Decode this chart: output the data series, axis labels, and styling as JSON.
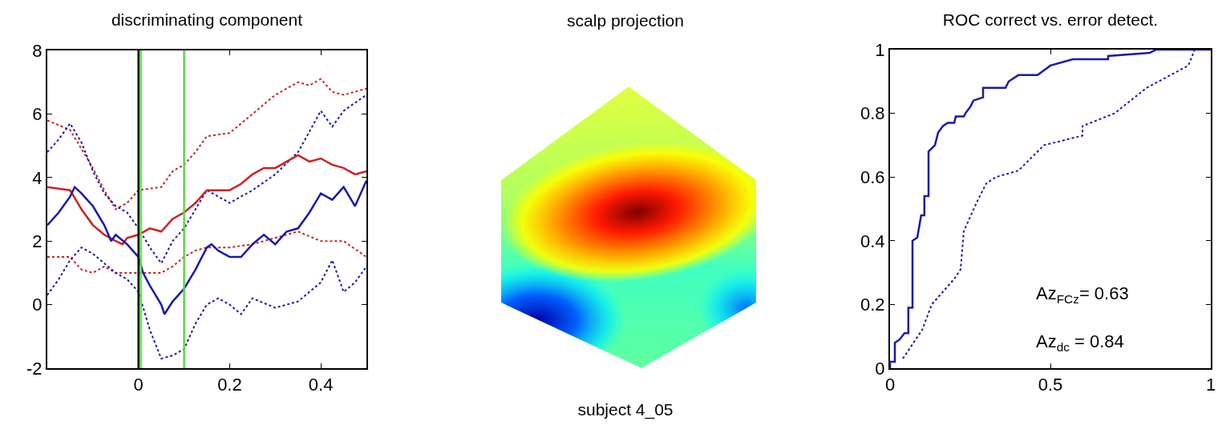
{
  "chart_data": [
    {
      "type": "line",
      "title": "discriminating component",
      "xlim": [
        -0.2,
        0.5
      ],
      "xticks": [
        0,
        0.2,
        0.4
      ],
      "ylim": [
        -2,
        8
      ],
      "yticks": [
        -2,
        0,
        2,
        4,
        6,
        8
      ],
      "ref_lines": [
        {
          "axis": "x",
          "value": 0,
          "color": "#000000"
        },
        {
          "axis": "x",
          "value": 0.005,
          "color": "#55dd44"
        },
        {
          "axis": "x",
          "value": 0.1,
          "color": "#55dd44"
        }
      ],
      "series": [
        {
          "color": "#cc2222",
          "line_style": "dotted",
          "x": [
            -0.2,
            -0.15,
            -0.125,
            -0.1,
            -0.075,
            -0.05,
            -0.025,
            0,
            0.05,
            0.075,
            0.1,
            0.125,
            0.15,
            0.2,
            0.25,
            0.3,
            0.35,
            0.375,
            0.4,
            0.425,
            0.45,
            0.5
          ],
          "values": [
            5.8,
            5.5,
            4.9,
            4.3,
            3.6,
            3.0,
            3.2,
            3.6,
            3.7,
            4.2,
            4.4,
            4.8,
            5.3,
            5.4,
            6.0,
            6.6,
            7.0,
            6.9,
            7.1,
            6.7,
            6.6,
            6.8
          ]
        },
        {
          "color": "#cc2222",
          "line_style": "dotted",
          "x": [
            -0.2,
            -0.15,
            -0.125,
            -0.1,
            -0.075,
            -0.05,
            -0.025,
            0,
            0.05,
            0.075,
            0.1,
            0.125,
            0.15,
            0.2,
            0.25,
            0.3,
            0.35,
            0.4,
            0.45,
            0.5
          ],
          "values": [
            1.5,
            1.5,
            1.1,
            1.0,
            1.2,
            1.0,
            1.0,
            1.0,
            1.0,
            1.2,
            1.5,
            1.7,
            1.8,
            1.8,
            1.9,
            2.1,
            2.3,
            2.0,
            2.0,
            1.5
          ]
        },
        {
          "color": "#1a1aaa",
          "line_style": "dotted",
          "x": [
            -0.2,
            -0.175,
            -0.15,
            -0.125,
            -0.1,
            -0.075,
            -0.05,
            -0.025,
            0,
            0.025,
            0.05,
            0.075,
            0.1,
            0.125,
            0.15,
            0.2,
            0.25,
            0.3,
            0.35,
            0.4,
            0.425,
            0.45,
            0.5
          ],
          "values": [
            4.8,
            5.2,
            5.7,
            5.1,
            4.2,
            3.5,
            3.1,
            2.9,
            2.4,
            1.8,
            1.3,
            2.0,
            2.4,
            3.0,
            3.6,
            3.2,
            3.6,
            4.1,
            4.8,
            6.1,
            5.6,
            6.1,
            6.6
          ]
        },
        {
          "color": "#1a1aaa",
          "line_style": "dotted",
          "x": [
            -0.2,
            -0.175,
            -0.15,
            -0.125,
            -0.1,
            -0.075,
            -0.05,
            -0.025,
            0,
            0.025,
            0.05,
            0.075,
            0.1,
            0.125,
            0.15,
            0.175,
            0.2,
            0.225,
            0.25,
            0.3,
            0.35,
            0.375,
            0.4,
            0.425,
            0.45,
            0.475,
            0.5
          ],
          "values": [
            0.3,
            0.8,
            1.4,
            1.8,
            1.6,
            1.3,
            1.0,
            0.8,
            0.4,
            -0.8,
            -1.7,
            -1.6,
            -1.4,
            -0.6,
            0.0,
            0.2,
            0.0,
            -0.3,
            0.2,
            -0.1,
            0.1,
            0.4,
            0.7,
            1.4,
            0.4,
            0.7,
            1.2
          ]
        },
        {
          "color": "#cc2222",
          "line_style": "solid",
          "x": [
            -0.2,
            -0.15,
            -0.125,
            -0.1,
            -0.075,
            -0.05,
            -0.035,
            -0.025,
            0,
            0.025,
            0.05,
            0.075,
            0.1,
            0.125,
            0.15,
            0.175,
            0.2,
            0.225,
            0.25,
            0.275,
            0.3,
            0.325,
            0.35,
            0.375,
            0.4,
            0.425,
            0.45,
            0.475,
            0.5
          ],
          "values": [
            3.7,
            3.6,
            3.0,
            2.5,
            2.2,
            2.0,
            1.9,
            2.1,
            2.2,
            2.4,
            2.3,
            2.7,
            2.9,
            3.2,
            3.6,
            3.6,
            3.6,
            3.8,
            4.1,
            4.3,
            4.3,
            4.5,
            4.7,
            4.5,
            4.6,
            4.4,
            4.3,
            4.1,
            4.2
          ]
        },
        {
          "color": "#1a1aaa",
          "line_style": "solid",
          "x": [
            -0.2,
            -0.175,
            -0.15,
            -0.14,
            -0.125,
            -0.1,
            -0.075,
            -0.06,
            -0.05,
            -0.025,
            0,
            0.01,
            0.025,
            0.05,
            0.057,
            0.075,
            0.1,
            0.125,
            0.15,
            0.16,
            0.175,
            0.2,
            0.225,
            0.25,
            0.275,
            0.3,
            0.325,
            0.35,
            0.375,
            0.4,
            0.425,
            0.45,
            0.475,
            0.5
          ],
          "values": [
            2.5,
            2.9,
            3.4,
            3.7,
            3.5,
            3.1,
            2.5,
            2.0,
            2.2,
            1.9,
            1.5,
            1.0,
            0.6,
            0.0,
            -0.3,
            0.1,
            0.5,
            1.1,
            1.8,
            1.9,
            1.7,
            1.5,
            1.5,
            1.9,
            2.2,
            1.9,
            2.3,
            2.4,
            2.9,
            3.5,
            3.3,
            3.7,
            3.1,
            3.9
          ]
        }
      ]
    },
    {
      "type": "other",
      "title": "scalp projection",
      "annotations": [
        "subject 4_05"
      ]
    },
    {
      "type": "line",
      "title": "ROC correct vs. error detect.",
      "xlim": [
        0,
        1
      ],
      "xticks": [
        0,
        0.5,
        1
      ],
      "ylim": [
        0,
        1
      ],
      "yticks": [
        0,
        0.2,
        0.4,
        0.6,
        0.8,
        1
      ],
      "annotations": [
        "Az$_{FCz}$= 0.63",
        "Az$_{dc}$ = 0.84"
      ],
      "series": [
        {
          "color": "#1a1aaa",
          "line_style": "dotted",
          "x": [
            0.04,
            0.1,
            0.13,
            0.2,
            0.22,
            0.23,
            0.27,
            0.3,
            0.33,
            0.4,
            0.43,
            0.48,
            0.6,
            0.6,
            0.7,
            0.8,
            0.93,
            0.95,
            1
          ],
          "values": [
            0.03,
            0.12,
            0.2,
            0.28,
            0.31,
            0.43,
            0.52,
            0.58,
            0.6,
            0.62,
            0.65,
            0.7,
            0.73,
            0.76,
            0.8,
            0.88,
            0.95,
            1,
            1
          ]
        },
        {
          "color": "#1a1aaa",
          "line_style": "solid",
          "x": [
            0,
            0,
            0.015,
            0.015,
            0.03,
            0.045,
            0.057,
            0.057,
            0.07,
            0.07,
            0.085,
            0.097,
            0.107,
            0.107,
            0.12,
            0.12,
            0.14,
            0.15,
            0.165,
            0.18,
            0.2,
            0.205,
            0.23,
            0.235,
            0.25,
            0.26,
            0.29,
            0.29,
            0.36,
            0.37,
            0.4,
            0.46,
            0.5,
            0.57,
            0.68,
            0.68,
            0.81,
            0.83,
            1
          ],
          "values": [
            0,
            0.02,
            0.02,
            0.08,
            0.09,
            0.11,
            0.11,
            0.19,
            0.19,
            0.4,
            0.41,
            0.48,
            0.48,
            0.54,
            0.54,
            0.68,
            0.7,
            0.74,
            0.76,
            0.77,
            0.77,
            0.79,
            0.79,
            0.8,
            0.82,
            0.84,
            0.85,
            0.88,
            0.88,
            0.9,
            0.92,
            0.92,
            0.95,
            0.97,
            0.97,
            0.98,
            0.99,
            1,
            1
          ]
        }
      ]
    }
  ]
}
